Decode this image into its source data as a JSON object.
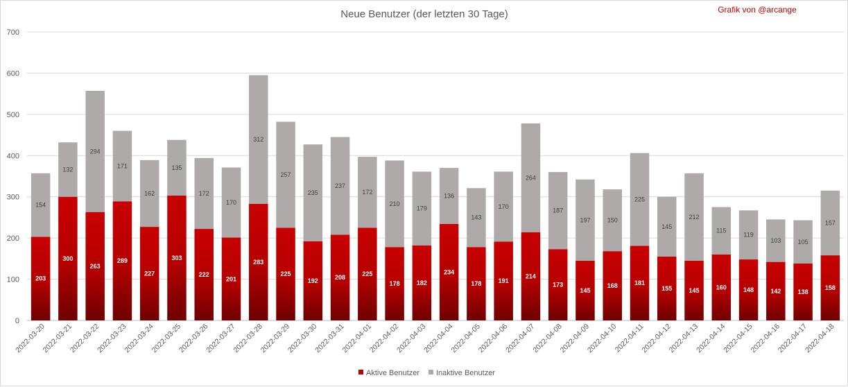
{
  "chart_data": {
    "type": "bar",
    "stacked": true,
    "title": "Neue Benutzer (der letzten 30 Tage)",
    "credit": "Grafik von @arcange",
    "xlabel": "",
    "ylabel": "",
    "ylim": [
      0,
      700
    ],
    "yticks": [
      0,
      100,
      200,
      300,
      400,
      500,
      600,
      700
    ],
    "grid": true,
    "legend_position": "bottom",
    "categories": [
      "2022-03-20",
      "2022-03-21",
      "2022-03-22",
      "2022-03-23",
      "2022-03-24",
      "2022-03-25",
      "2022-03-26",
      "2022-03-27",
      "2022-03-28",
      "2022-03-29",
      "2022-03-30",
      "2022-03-31",
      "2022-04-01",
      "2022-04-02",
      "2022-04-03",
      "2022-04-04",
      "2022-04-05",
      "2022-04-06",
      "2022-04-07",
      "2022-04-08",
      "2022-04-09",
      "2022-04-10",
      "2022-04-11",
      "2022-04-12",
      "2022-04-13",
      "2022-04-14",
      "2022-04-15",
      "2022-04-16",
      "2022-04-17",
      "2022-04-18"
    ],
    "series": [
      {
        "name": "Aktive Benutzer",
        "color": "#c00000",
        "values": [
          203,
          300,
          263,
          289,
          227,
          303,
          222,
          201,
          283,
          225,
          192,
          208,
          225,
          178,
          182,
          234,
          178,
          191,
          214,
          173,
          145,
          168,
          181,
          155,
          145,
          160,
          148,
          142,
          138,
          158
        ]
      },
      {
        "name": "Inaktive Benutzer",
        "color": "#aeaaaa",
        "values": [
          154,
          132,
          294,
          171,
          162,
          135,
          172,
          170,
          312,
          257,
          235,
          237,
          172,
          210,
          179,
          136,
          143,
          170,
          264,
          187,
          197,
          150,
          225,
          145,
          212,
          115,
          119,
          103,
          105,
          157
        ]
      }
    ]
  }
}
